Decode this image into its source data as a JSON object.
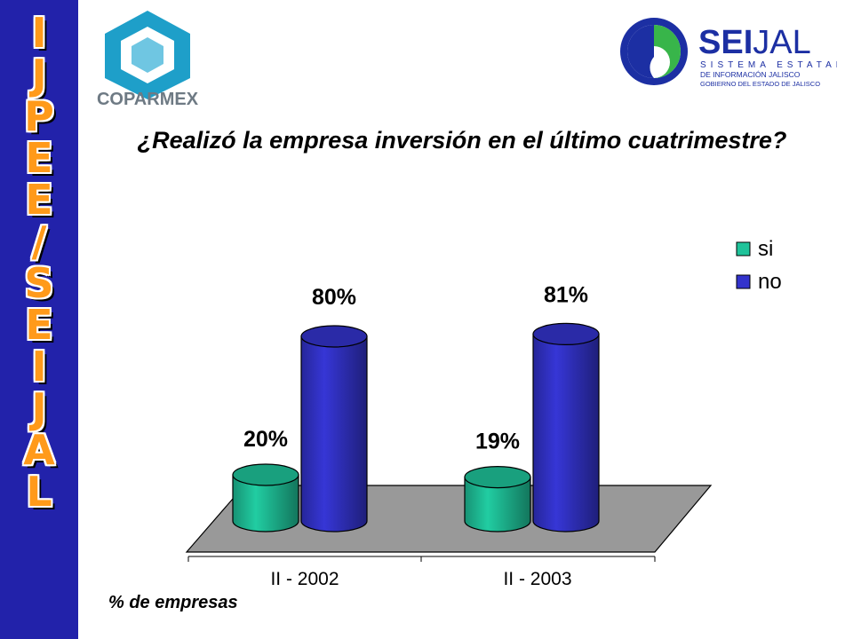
{
  "sidebar": {
    "letters": [
      "I",
      "J",
      "P",
      "E",
      "E",
      "/",
      "S",
      "E",
      "I",
      "J",
      "A",
      "L"
    ]
  },
  "logos": {
    "coparmex": {
      "text": "COPARMEX"
    },
    "seijal": {
      "brand_bold": "SEI",
      "brand_light": "JAL",
      "line1": "SISTEMA ESTATAL",
      "line2": "DE INFORMACIÓN JALISCO",
      "line3": "GOBIERNO DEL ESTADO DE JALISCO"
    }
  },
  "colors": {
    "sidebar": "#2222aa",
    "sidebar_letters": "#ff9a1a",
    "si": "#1fc39a",
    "no": "#3333cc",
    "floor": "#999999"
  },
  "chart_data": {
    "type": "bar",
    "style": "3d-cylinder",
    "title": "¿Realizó la empresa inversión en el último cuatrimestre?",
    "categories": [
      "II - 2002",
      "II - 2003"
    ],
    "series": [
      {
        "name": "si",
        "values": [
          20,
          19
        ]
      },
      {
        "name": "no",
        "values": [
          80,
          81
        ]
      }
    ],
    "data_labels": [
      [
        "20%",
        "19%"
      ],
      [
        "80%",
        "81%"
      ]
    ],
    "ylim": [
      0,
      100
    ],
    "legend": "top-right",
    "grid": false,
    "footnote": "% de empresas"
  }
}
